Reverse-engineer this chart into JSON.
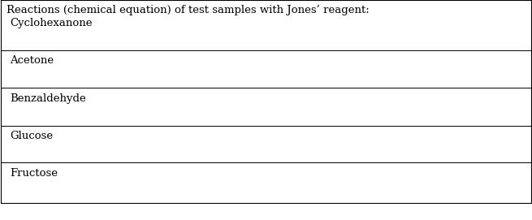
{
  "title": "Reactions (chemical equation) of test samples with Jones’ reagent:",
  "rows": [
    "Cyclohexanone",
    "Acetone",
    "Benzaldehyde",
    "Glucose",
    "Fructose"
  ],
  "bg_color": "#ffffff",
  "text_color": "#000000",
  "title_fontsize": 9.5,
  "row_fontsize": 9.5,
  "line_color": "#000000",
  "fig_width": 6.55,
  "fig_height": 2.71,
  "dpi": 100
}
